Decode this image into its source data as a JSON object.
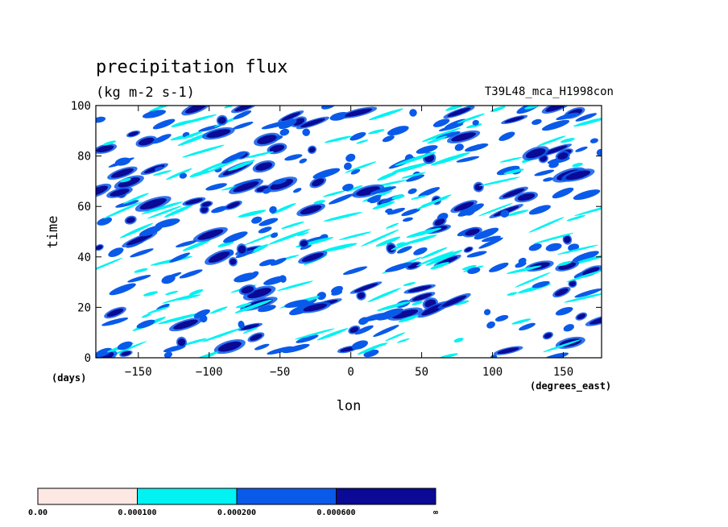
{
  "chart_data": {
    "type": "heatmap",
    "title": "precipitation flux",
    "units": "(kg m-2 s-1)",
    "run_label": "T39L48_mca_H1998con",
    "xlabel": "lon",
    "x_units": "(degrees_east)",
    "ylabel": "time",
    "y_units": "(days)",
    "xlim": [
      -180,
      177
    ],
    "ylim": [
      0,
      100
    ],
    "x_ticks": [
      -150,
      -100,
      -50,
      0,
      50,
      100,
      150
    ],
    "y_ticks": [
      0,
      20,
      40,
      60,
      80,
      100
    ],
    "x_tick_labels": [
      "−150",
      "−100",
      "−50",
      "0",
      "50",
      "100",
      "150"
    ],
    "y_tick_labels": [
      "0",
      "20",
      "40",
      "60",
      "80",
      "100"
    ],
    "levels": [
      0.0,
      0.0001,
      0.0002,
      0.0006
    ],
    "level_colors": [
      "#fde8e4",
      "#00f2f2",
      "#0a5aea",
      "#0a0a96"
    ],
    "colorbar_labels": [
      "0.00",
      "0.000100",
      "0.000200",
      "0.000600",
      "∞"
    ],
    "pattern": "eastward-propagating streaks tilted upward to the right, scattered over the full domain"
  }
}
